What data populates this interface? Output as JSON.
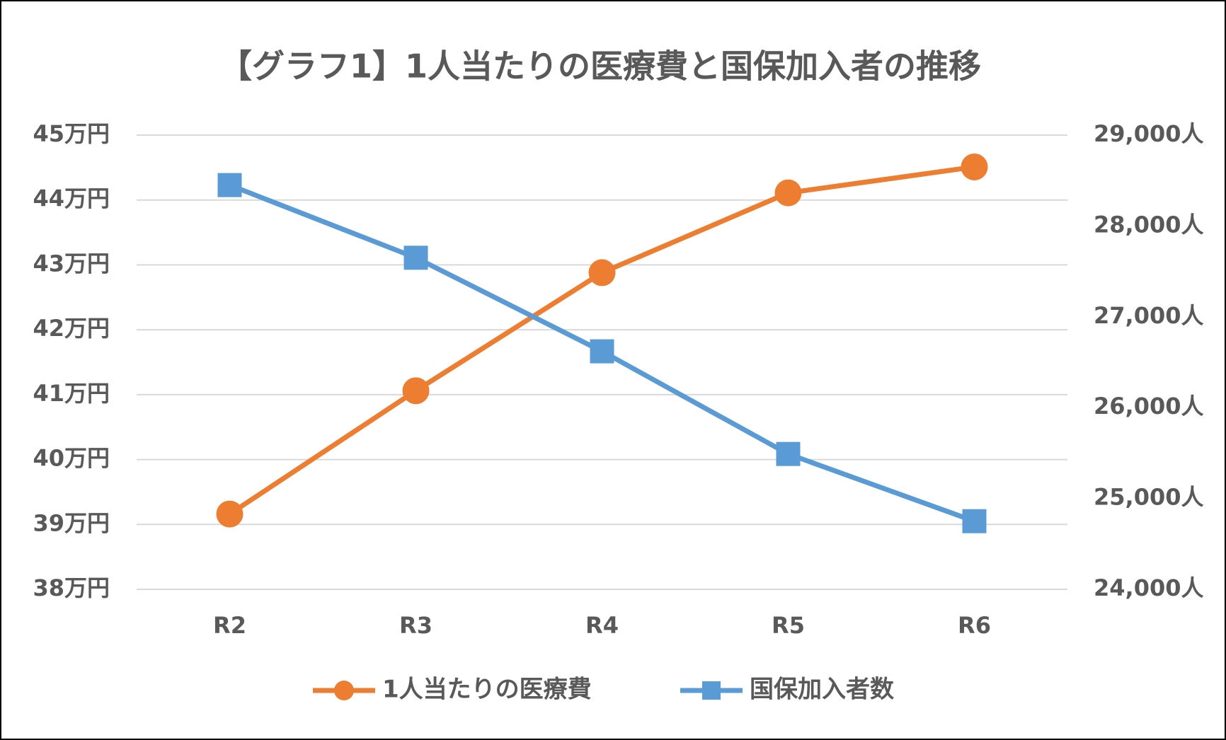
{
  "chart_data": {
    "type": "line",
    "title": "【グラフ1】1人当たりの医療費と国保加入者の推移",
    "categories": [
      "R2",
      "R3",
      "R4",
      "R5",
      "R6"
    ],
    "series": [
      {
        "name": "1人当たりの医療費",
        "color": "#ed7d31",
        "marker": "circle",
        "values": [
          39.16,
          41.06,
          42.88,
          44.11,
          44.51
        ]
      },
      {
        "name": "国保加入者数",
        "color": "#5b9bd5",
        "marker": "square",
        "axis": "y2",
        "values": [
          28450,
          27650,
          26620,
          25490,
          24750
        ]
      }
    ],
    "ylim": [
      38,
      45
    ],
    "yticks": [
      {
        "value": 38,
        "label": "38万円"
      },
      {
        "value": 39,
        "label": "39万円"
      },
      {
        "value": 40,
        "label": "40万円"
      },
      {
        "value": 41,
        "label": "41万円"
      },
      {
        "value": 42,
        "label": "42万円"
      },
      {
        "value": 43,
        "label": "43万円"
      },
      {
        "value": 44,
        "label": "44万円"
      },
      {
        "value": 45,
        "label": "45万円"
      }
    ],
    "y2lim": [
      24000,
      29000
    ],
    "y2ticks": [
      {
        "value": 24000,
        "label": "24,000人"
      },
      {
        "value": 25000,
        "label": "25,000人"
      },
      {
        "value": 26000,
        "label": "26,000人"
      },
      {
        "value": 27000,
        "label": "27,000人"
      },
      {
        "value": 28000,
        "label": "28,000人"
      },
      {
        "value": 29000,
        "label": "29,000人"
      }
    ],
    "grid": true,
    "legend": "bottom"
  }
}
